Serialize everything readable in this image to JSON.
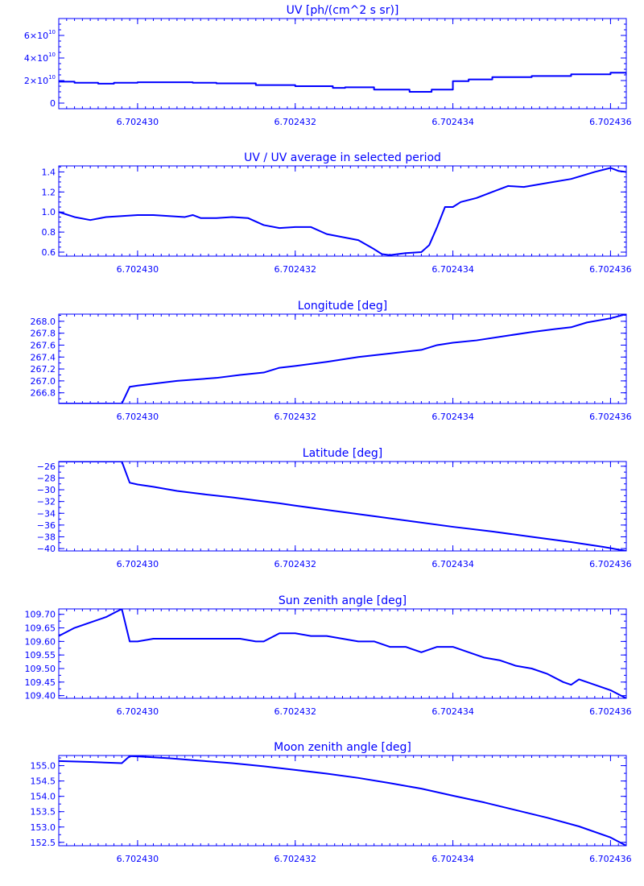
{
  "colors": {
    "line": "#0000ff",
    "background": "#ffffff"
  },
  "chart_data": [
    {
      "type": "line",
      "title": "UV [ph/(cm^2 s sr)]",
      "xlim": [
        6.702429,
        6.7024362
      ],
      "ylim": [
        -5000000000.0,
        75000000000.0
      ],
      "x_tick_values": [
        6.70243,
        6.702432,
        6.702434,
        6.702436
      ],
      "x_ticks": [
        "6.702430",
        "6.702432",
        "6.702434",
        "6.702436"
      ],
      "y_ticks": [
        {
          "value": 0,
          "label": "0",
          "exp": ""
        },
        {
          "value": 20000000000.0,
          "label": "2×10",
          "exp": "10"
        },
        {
          "value": 40000000000.0,
          "label": "4×10",
          "exp": "10"
        },
        {
          "value": 60000000000.0,
          "label": "6×10",
          "exp": "10"
        }
      ],
      "y_minor_step": 5000000000.0,
      "step": true,
      "x": [
        6.702429,
        6.7024292,
        6.7024295,
        6.7024297,
        6.70243,
        6.7024305,
        6.7024307,
        6.702431,
        6.7024315,
        6.702432,
        6.702432477,
        6.702432633,
        6.702433,
        6.70243345,
        6.70243373,
        6.702434,
        6.7024342,
        6.7024345,
        6.702435,
        6.7024355,
        6.702436,
        6.7024362
      ],
      "y": [
        19000000000.0,
        18000000000.0,
        17200000000.0,
        18000000000.0,
        18500000000.0,
        18500000000.0,
        18000000000.0,
        17500000000.0,
        16000000000.0,
        15000000000.0,
        13500000000.0,
        14000000000.0,
        12000000000.0,
        10000000000.0,
        12000000000.0,
        19500000000.0,
        21000000000.0,
        23000000000.0,
        24000000000.0,
        25500000000.0,
        27000000000.0,
        25500000000.0
      ]
    },
    {
      "type": "line",
      "title": "UV / UV average in selected period",
      "xlim": [
        6.702429,
        6.7024362
      ],
      "ylim": [
        0.56,
        1.46
      ],
      "x_tick_values": [
        6.70243,
        6.702432,
        6.702434,
        6.702436
      ],
      "x_ticks": [
        "6.702430",
        "6.702432",
        "6.702434",
        "6.702436"
      ],
      "y_ticks": [
        {
          "value": 0.6,
          "label": "0.6"
        },
        {
          "value": 0.8,
          "label": "0.8"
        },
        {
          "value": 1.0,
          "label": "1.0"
        },
        {
          "value": 1.2,
          "label": "1.2"
        },
        {
          "value": 1.4,
          "label": "1.4"
        }
      ],
      "y_minor_step": 0.05,
      "x": [
        6.702429,
        6.7024292,
        6.7024294,
        6.7024296,
        6.7024298,
        6.70243,
        6.7024302,
        6.7024304,
        6.7024306,
        6.7024307,
        6.7024308,
        6.702431,
        6.7024312,
        6.7024314,
        6.7024316,
        6.7024318,
        6.702432,
        6.7024322,
        6.7024324,
        6.7024326,
        6.7024328,
        6.702433,
        6.7024331,
        6.7024332,
        6.7024334,
        6.7024336,
        6.7024337,
        6.7024338,
        6.7024339,
        6.702434,
        6.7024341,
        6.7024343,
        6.7024345,
        6.7024347,
        6.7024349,
        6.7024352,
        6.7024355,
        6.7024358,
        6.702436,
        6.7024361,
        6.7024362
      ],
      "y": [
        1.0,
        0.95,
        0.92,
        0.95,
        0.96,
        0.97,
        0.97,
        0.96,
        0.95,
        0.97,
        0.94,
        0.94,
        0.95,
        0.94,
        0.87,
        0.84,
        0.85,
        0.85,
        0.78,
        0.75,
        0.72,
        0.63,
        0.58,
        0.57,
        0.59,
        0.6,
        0.67,
        0.85,
        1.05,
        1.05,
        1.1,
        1.14,
        1.2,
        1.26,
        1.25,
        1.29,
        1.33,
        1.4,
        1.44,
        1.41,
        1.4
      ]
    },
    {
      "type": "line",
      "title": "Longitude [deg]",
      "xlim": [
        6.702429,
        6.7024362
      ],
      "ylim": [
        266.62,
        268.12
      ],
      "x_tick_values": [
        6.70243,
        6.702432,
        6.702434,
        6.702436
      ],
      "x_ticks": [
        "6.702430",
        "6.702432",
        "6.702434",
        "6.702436"
      ],
      "y_ticks": [
        {
          "value": 266.8,
          "label": "266.8"
        },
        {
          "value": 267.0,
          "label": "267.0"
        },
        {
          "value": 267.2,
          "label": "267.2"
        },
        {
          "value": 267.4,
          "label": "267.4"
        },
        {
          "value": 267.6,
          "label": "267.6"
        },
        {
          "value": 267.8,
          "label": "267.8"
        },
        {
          "value": 268.0,
          "label": "268.0"
        }
      ],
      "y_minor_step": 0.1,
      "x": [
        6.702429,
        6.7024298,
        6.7024299,
        6.70243,
        6.7024305,
        6.702431,
        6.7024313,
        6.7024316,
        6.7024318,
        6.702432,
        6.7024324,
        6.7024328,
        6.7024332,
        6.7024336,
        6.7024338,
        6.702434,
        6.7024343,
        6.7024347,
        6.702435,
        6.7024353,
        6.7024355,
        6.7024357,
        6.702436,
        6.7024362
      ],
      "y": [
        266.62,
        266.62,
        266.9,
        266.92,
        267.0,
        267.05,
        267.1,
        267.14,
        267.22,
        267.25,
        267.32,
        267.4,
        267.46,
        267.52,
        267.6,
        267.64,
        267.68,
        267.76,
        267.82,
        267.87,
        267.9,
        267.98,
        268.05,
        268.12
      ]
    },
    {
      "type": "line",
      "title": "Latitude [deg]",
      "xlim": [
        6.702429,
        6.7024362
      ],
      "ylim": [
        -40.4,
        -25.2
      ],
      "x_tick_values": [
        6.70243,
        6.702432,
        6.702434,
        6.702436
      ],
      "x_ticks": [
        "6.702430",
        "6.702432",
        "6.702434",
        "6.702436"
      ],
      "y_ticks": [
        {
          "value": -40,
          "label": "−40"
        },
        {
          "value": -38,
          "label": "−38"
        },
        {
          "value": -36,
          "label": "−36"
        },
        {
          "value": -34,
          "label": "−34"
        },
        {
          "value": -32,
          "label": "−32"
        },
        {
          "value": -30,
          "label": "−30"
        },
        {
          "value": -28,
          "label": "−28"
        },
        {
          "value": -26,
          "label": "−26"
        }
      ],
      "y_minor_step": 1,
      "x": [
        6.702429,
        6.7024298,
        6.7024299,
        6.70243,
        6.7024302,
        6.7024305,
        6.7024308,
        6.7024312,
        6.7024315,
        6.7024318,
        6.702432,
        6.7024325,
        6.702433,
        6.7024335,
        6.702434,
        6.7024345,
        6.702435,
        6.7024355,
        6.7024359,
        6.7024362
      ],
      "y": [
        -25.2,
        -25.2,
        -28.8,
        -29.1,
        -29.5,
        -30.2,
        -30.7,
        -31.3,
        -31.8,
        -32.3,
        -32.7,
        -33.6,
        -34.5,
        -35.4,
        -36.3,
        -37.1,
        -38.0,
        -38.9,
        -39.7,
        -40.4
      ]
    },
    {
      "type": "line",
      "title": "Sun zenith angle [deg]",
      "xlim": [
        6.702429,
        6.7024362
      ],
      "ylim": [
        109.39,
        109.72
      ],
      "x_tick_values": [
        6.70243,
        6.702432,
        6.702434,
        6.702436
      ],
      "x_ticks": [
        "6.702430",
        "6.702432",
        "6.702434",
        "6.702436"
      ],
      "y_ticks": [
        {
          "value": 109.4,
          "label": "109.40"
        },
        {
          "value": 109.45,
          "label": "109.45"
        },
        {
          "value": 109.5,
          "label": "109.50"
        },
        {
          "value": 109.55,
          "label": "109.55"
        },
        {
          "value": 109.6,
          "label": "109.60"
        },
        {
          "value": 109.65,
          "label": "109.65"
        },
        {
          "value": 109.7,
          "label": "109.70"
        }
      ],
      "y_minor_step": 0.025,
      "x": [
        6.702429,
        6.7024292,
        6.7024294,
        6.7024296,
        6.7024298,
        6.7024299,
        6.70243,
        6.7024302,
        6.7024305,
        6.7024308,
        6.7024311,
        6.7024313,
        6.7024315,
        6.7024316,
        6.7024318,
        6.702432,
        6.7024322,
        6.7024324,
        6.7024326,
        6.7024328,
        6.702433,
        6.7024332,
        6.7024334,
        6.7024336,
        6.7024338,
        6.702434,
        6.7024342,
        6.7024344,
        6.7024346,
        6.7024348,
        6.702435,
        6.7024352,
        6.7024354,
        6.7024355,
        6.7024356,
        6.7024358,
        6.702436,
        6.7024362
      ],
      "y": [
        109.62,
        109.65,
        109.67,
        109.69,
        109.72,
        109.6,
        109.6,
        109.61,
        109.61,
        109.61,
        109.61,
        109.61,
        109.6,
        109.6,
        109.63,
        109.63,
        109.62,
        109.62,
        109.61,
        109.6,
        109.6,
        109.58,
        109.58,
        109.56,
        109.58,
        109.58,
        109.56,
        109.54,
        109.53,
        109.51,
        109.5,
        109.48,
        109.45,
        109.44,
        109.46,
        109.44,
        109.42,
        109.39
      ]
    },
    {
      "type": "line",
      "title": "Moon zenith angle [deg]",
      "xlim": [
        6.702429,
        6.7024362
      ],
      "ylim": [
        152.39,
        155.33
      ],
      "x_tick_values": [
        6.70243,
        6.702432,
        6.702434,
        6.702436
      ],
      "x_ticks": [
        "6.702430",
        "6.702432",
        "6.702434",
        "6.702436"
      ],
      "y_ticks": [
        {
          "value": 152.5,
          "label": "152.5"
        },
        {
          "value": 153.0,
          "label": "153.0"
        },
        {
          "value": 153.5,
          "label": "153.5"
        },
        {
          "value": 154.0,
          "label": "154.0"
        },
        {
          "value": 154.5,
          "label": "154.5"
        },
        {
          "value": 155.0,
          "label": "155.0"
        }
      ],
      "y_minor_step": 0.25,
      "x": [
        6.702429,
        6.7024294,
        6.7024298,
        6.7024299,
        6.70243,
        6.7024304,
        6.7024308,
        6.7024312,
        6.7024316,
        6.702432,
        6.7024324,
        6.7024328,
        6.7024332,
        6.7024336,
        6.702434,
        6.7024344,
        6.7024348,
        6.7024352,
        6.7024356,
        6.702436,
        6.7024362
      ],
      "y": [
        155.15,
        155.12,
        155.08,
        155.31,
        155.3,
        155.24,
        155.16,
        155.08,
        154.98,
        154.86,
        154.74,
        154.6,
        154.43,
        154.25,
        154.02,
        153.8,
        153.55,
        153.3,
        153.02,
        152.66,
        152.39
      ]
    }
  ]
}
